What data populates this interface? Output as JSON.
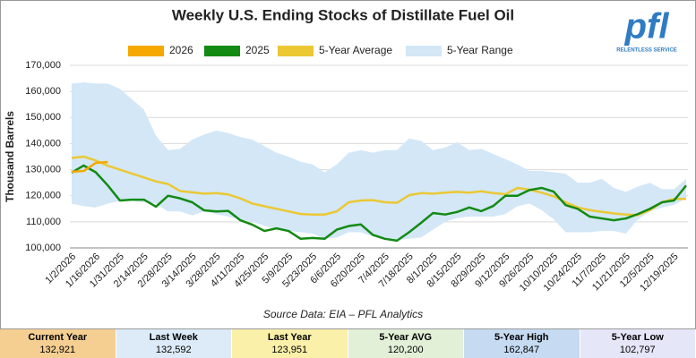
{
  "chart_data": {
    "type": "line",
    "title": "Weekly U.S. Ending Stocks of Distillate Fuel Oil",
    "ylabel": "Thousand Barrels",
    "source": "Source Data: EIA – PFL Analytics",
    "categories": [
      "1/2/2026",
      null,
      "1/16/2026",
      null,
      "1/31/2025",
      null,
      "2/14/2025",
      null,
      "2/28/2025",
      null,
      "3/14/2025",
      null,
      "3/28/2025",
      null,
      "4/11/2025",
      null,
      "4/25/2025",
      null,
      "5/9/2025",
      null,
      "5/23/2025",
      null,
      "6/6/2025",
      null,
      "6/20/2025",
      null,
      "7/4/2025",
      null,
      "7/18/2025",
      null,
      "8/1/2025",
      null,
      "8/15/2025",
      null,
      "8/29/2025",
      null,
      "9/12/2025",
      null,
      "9/26/2025",
      null,
      "10/10/2025",
      null,
      "10/24/2025",
      null,
      "11/7/2025",
      null,
      "11/21/2025",
      null,
      "12/5/2025",
      null,
      "12/19/2025",
      null
    ],
    "ylim": [
      100000,
      170000
    ],
    "yticks": [
      {
        "value": 100000,
        "label": "100,000"
      },
      {
        "value": 110000,
        "label": "110,000"
      },
      {
        "value": 120000,
        "label": "120,000"
      },
      {
        "value": 130000,
        "label": "130,000"
      },
      {
        "value": 140000,
        "label": "140,000"
      },
      {
        "value": 150000,
        "label": "150,000"
      },
      {
        "value": 160000,
        "label": "160,000"
      },
      {
        "value": 170000,
        "label": "170,000"
      }
    ],
    "grid": true,
    "range": {
      "name": "5-Year Range",
      "color": "#d3e7f7",
      "high": [
        163000,
        163500,
        163000,
        163000,
        161000,
        157000,
        153000,
        143000,
        137500,
        138000,
        141500,
        143500,
        145000,
        144000,
        142500,
        141500,
        139000,
        136500,
        135000,
        133000,
        132000,
        129000,
        132000,
        136500,
        137500,
        136500,
        137500,
        137500,
        142000,
        141000,
        137500,
        138500,
        140500,
        137500,
        138000,
        136000,
        134000,
        132000,
        129500,
        129500,
        129000,
        128500,
        125000,
        125000,
        126500,
        123000,
        121500,
        123500,
        125000,
        122500,
        122500,
        126500
      ],
      "low": [
        117000,
        116000,
        115500,
        117000,
        118000,
        118000,
        117500,
        117000,
        114000,
        114000,
        112500,
        114000,
        113000,
        112000,
        111000,
        110000,
        108500,
        107000,
        106500,
        106000,
        105500,
        103500,
        104000,
        106000,
        106000,
        104500,
        103000,
        103000,
        103500,
        104000,
        107000,
        110000,
        111500,
        112000,
        112000,
        112000,
        113000,
        116000,
        117000,
        114500,
        111000,
        106000,
        106000,
        106000,
        106500,
        106500,
        105500,
        111000,
        114000,
        115500,
        116500,
        119000
      ]
    },
    "series": [
      {
        "name": "2026",
        "color": "#f5a800",
        "values": [
          129200,
          129500,
          132592,
          132921,
          null,
          null,
          null,
          null,
          null,
          null,
          null,
          null,
          null,
          null,
          null,
          null,
          null,
          null,
          null,
          null,
          null,
          null,
          null,
          null,
          null,
          null,
          null,
          null,
          null,
          null,
          null,
          null,
          null,
          null,
          null,
          null,
          null,
          null,
          null,
          null,
          null,
          null,
          null,
          null,
          null,
          null,
          null,
          null,
          null,
          null,
          null,
          null
        ]
      },
      {
        "name": "2025",
        "color": "#138a13",
        "values": [
          128900,
          131600,
          129000,
          123951,
          118200,
          118500,
          118500,
          115800,
          120000,
          119000,
          117500,
          114400,
          114000,
          114200,
          110600,
          108900,
          106500,
          107500,
          106500,
          103500,
          103800,
          103500,
          107000,
          108400,
          109000,
          105000,
          103500,
          102797,
          106000,
          109600,
          113400,
          112800,
          113800,
          115500,
          114100,
          116100,
          120000,
          120000,
          122200,
          123000,
          121600,
          116400,
          115000,
          112000,
          111300,
          110600,
          111300,
          113000,
          115000,
          117500,
          118200,
          123900
        ]
      },
      {
        "name": "5-Year Average",
        "color": "#ebc834",
        "values": [
          134500,
          135000,
          133500,
          131500,
          130000,
          128500,
          127000,
          125500,
          124500,
          121800,
          121300,
          120800,
          121000,
          120500,
          119000,
          117000,
          116000,
          115000,
          114000,
          113000,
          112800,
          112800,
          114000,
          117500,
          118200,
          118300,
          117500,
          117300,
          120200,
          121000,
          120800,
          121200,
          121500,
          121200,
          121700,
          121000,
          120600,
          123000,
          122300,
          121200,
          119800,
          117500,
          115500,
          114500,
          113800,
          113200,
          112800,
          112600,
          114500,
          117500,
          118800,
          118800
        ]
      }
    ]
  },
  "logo": {
    "text": "pfl",
    "tagline": "RELENTLESS SERVICE"
  },
  "summary": [
    {
      "label": "Current Year",
      "value": "132,921",
      "color": "#f5cf92"
    },
    {
      "label": "Last Week",
      "value": "132,592",
      "color": "#ddebf8"
    },
    {
      "label": "Last Year",
      "value": "123,951",
      "color": "#fbf0aa"
    },
    {
      "label": "5-Year AVG",
      "value": "120,200",
      "color": "#e3f0d8"
    },
    {
      "label": "5-Year High",
      "value": "162,847",
      "color": "#c6dbf2"
    },
    {
      "label": "5-Year Low",
      "value": "102,797",
      "color": "#e5e7f8"
    }
  ]
}
